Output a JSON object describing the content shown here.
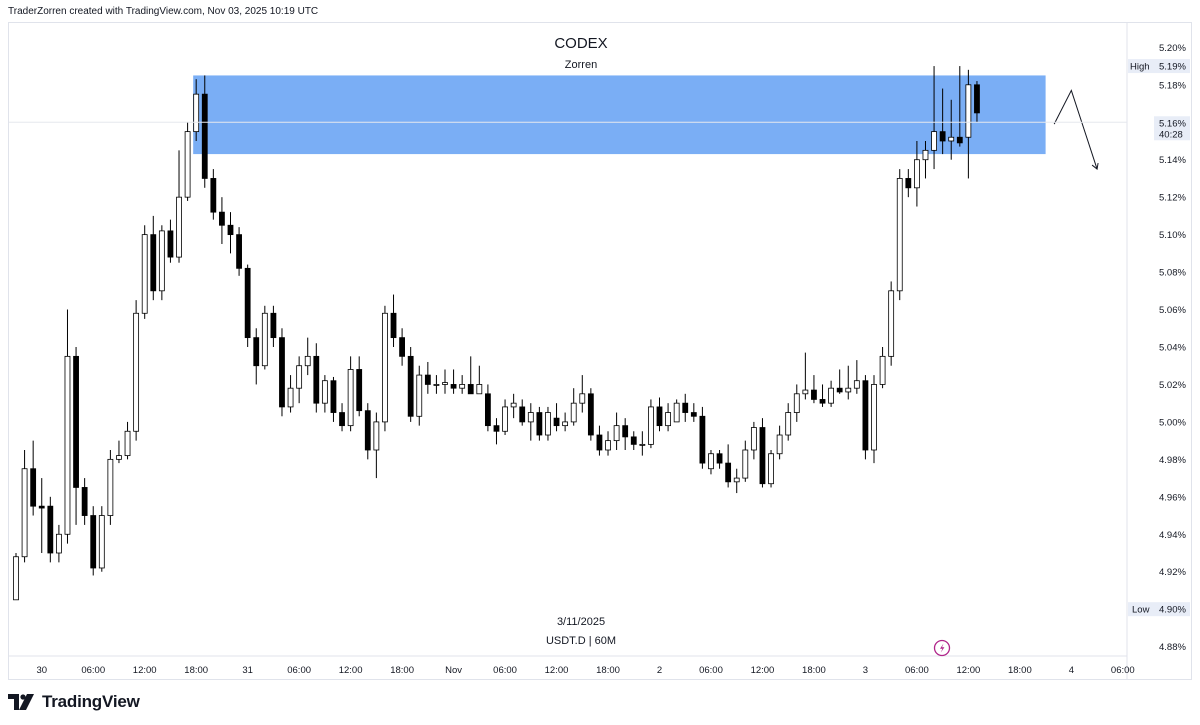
{
  "header": {
    "credit": "TraderZorren created with TradingView.com, Nov 03, 2025 10:19 UTC"
  },
  "footer": {
    "logo_text": "TradingView"
  },
  "colors": {
    "zone_fill": "#7aaef5",
    "candle_up_fill": "#ffffff",
    "candle_down_fill": "#000000",
    "candle_border": "#000000",
    "axis_text": "#131722",
    "marker_bg": "#e8edf7",
    "divider": "#e0e3eb"
  },
  "chart_data": {
    "type": "candlestick",
    "title": "CODEX",
    "subtitle": "Zorren",
    "date_label": "3/11/2025",
    "symbol_label": "USDT.D | 60M",
    "y_unit_label": "%",
    "ylim": [
      4.875,
      5.213
    ],
    "yticks": [
      "5.20%",
      "5.18%",
      "5.14%",
      "5.12%",
      "5.10%",
      "5.08%",
      "5.06%",
      "5.04%",
      "5.02%",
      "5.00%",
      "4.98%",
      "4.96%",
      "4.94%",
      "4.92%",
      "4.88%"
    ],
    "xticks": [
      {
        "label": "30",
        "bar": 3
      },
      {
        "label": "06:00",
        "bar": 9
      },
      {
        "label": "12:00",
        "bar": 15
      },
      {
        "label": "18:00",
        "bar": 21
      },
      {
        "label": "31",
        "bar": 27
      },
      {
        "label": "06:00",
        "bar": 33
      },
      {
        "label": "12:00",
        "bar": 39
      },
      {
        "label": "18:00",
        "bar": 45
      },
      {
        "label": "Nov",
        "bar": 51
      },
      {
        "label": "06:00",
        "bar": 57
      },
      {
        "label": "12:00",
        "bar": 63
      },
      {
        "label": "18:00",
        "bar": 69
      },
      {
        "label": "2",
        "bar": 75
      },
      {
        "label": "06:00",
        "bar": 81
      },
      {
        "label": "12:00",
        "bar": 87
      },
      {
        "label": "18:00",
        "bar": 93
      },
      {
        "label": "3",
        "bar": 99
      },
      {
        "label": "06:00",
        "bar": 105
      },
      {
        "label": "12:00",
        "bar": 111
      },
      {
        "label": "18:00",
        "bar": 117
      },
      {
        "label": "4",
        "bar": 123
      },
      {
        "label": "06:00",
        "bar": 129
      }
    ],
    "markers": {
      "high": {
        "label": "High",
        "value_label": "5.19%",
        "value": 5.19
      },
      "low": {
        "label": "Low",
        "value_label": "4.90%",
        "value": 4.9
      },
      "current": {
        "value_label": "5.16%",
        "countdown": "40:28",
        "value": 5.16
      }
    },
    "zone": {
      "from_bar": 21,
      "to_bar": 120,
      "low": 5.143,
      "high": 5.185
    },
    "projection": [
      {
        "bar": 121,
        "value": 5.159
      },
      {
        "bar": 123,
        "value": 5.177
      },
      {
        "bar": 126,
        "value": 5.135
      }
    ],
    "grid": false,
    "candles": [
      {
        "o": 4.905,
        "h": 4.93,
        "l": 4.905,
        "c": 4.928
      },
      {
        "o": 4.928,
        "h": 4.985,
        "l": 4.925,
        "c": 4.975
      },
      {
        "o": 4.975,
        "h": 4.99,
        "l": 4.95,
        "c": 4.955
      },
      {
        "o": 4.955,
        "h": 4.97,
        "l": 4.93,
        "c": 4.954
      },
      {
        "o": 4.955,
        "h": 4.96,
        "l": 4.925,
        "c": 4.93
      },
      {
        "o": 4.93,
        "h": 4.945,
        "l": 4.925,
        "c": 4.94
      },
      {
        "o": 4.94,
        "h": 5.06,
        "l": 4.935,
        "c": 5.035
      },
      {
        "o": 5.035,
        "h": 5.04,
        "l": 4.945,
        "c": 4.965
      },
      {
        "o": 4.965,
        "h": 4.97,
        "l": 4.945,
        "c": 4.95
      },
      {
        "o": 4.95,
        "h": 4.955,
        "l": 4.918,
        "c": 4.922
      },
      {
        "o": 4.922,
        "h": 4.955,
        "l": 4.92,
        "c": 4.95
      },
      {
        "o": 4.95,
        "h": 4.985,
        "l": 4.945,
        "c": 4.98
      },
      {
        "o": 4.98,
        "h": 4.99,
        "l": 4.978,
        "c": 4.982
      },
      {
        "o": 4.982,
        "h": 5.0,
        "l": 4.98,
        "c": 4.995
      },
      {
        "o": 4.995,
        "h": 5.065,
        "l": 4.99,
        "c": 5.058
      },
      {
        "o": 5.058,
        "h": 5.105,
        "l": 5.055,
        "c": 5.1
      },
      {
        "o": 5.1,
        "h": 5.11,
        "l": 5.065,
        "c": 5.07
      },
      {
        "o": 5.07,
        "h": 5.105,
        "l": 5.065,
        "c": 5.102
      },
      {
        "o": 5.102,
        "h": 5.108,
        "l": 5.085,
        "c": 5.088
      },
      {
        "o": 5.088,
        "h": 5.145,
        "l": 5.085,
        "c": 5.12
      },
      {
        "o": 5.12,
        "h": 5.16,
        "l": 5.118,
        "c": 5.155
      },
      {
        "o": 5.155,
        "h": 5.183,
        "l": 5.15,
        "c": 5.175
      },
      {
        "o": 5.175,
        "h": 5.185,
        "l": 5.125,
        "c": 5.13
      },
      {
        "o": 5.13,
        "h": 5.135,
        "l": 5.108,
        "c": 5.112
      },
      {
        "o": 5.112,
        "h": 5.12,
        "l": 5.095,
        "c": 5.105
      },
      {
        "o": 5.105,
        "h": 5.112,
        "l": 5.09,
        "c": 5.1
      },
      {
        "o": 5.1,
        "h": 5.104,
        "l": 5.078,
        "c": 5.082
      },
      {
        "o": 5.082,
        "h": 5.084,
        "l": 5.04,
        "c": 5.045
      },
      {
        "o": 5.045,
        "h": 5.05,
        "l": 5.02,
        "c": 5.03
      },
      {
        "o": 5.03,
        "h": 5.062,
        "l": 5.028,
        "c": 5.058
      },
      {
        "o": 5.058,
        "h": 5.062,
        "l": 5.04,
        "c": 5.045
      },
      {
        "o": 5.045,
        "h": 5.05,
        "l": 5.003,
        "c": 5.008
      },
      {
        "o": 5.008,
        "h": 5.025,
        "l": 5.005,
        "c": 5.018
      },
      {
        "o": 5.018,
        "h": 5.035,
        "l": 5.01,
        "c": 5.03
      },
      {
        "o": 5.03,
        "h": 5.045,
        "l": 5.025,
        "c": 5.035
      },
      {
        "o": 5.035,
        "h": 5.042,
        "l": 5.005,
        "c": 5.01
      },
      {
        "o": 5.01,
        "h": 5.025,
        "l": 5.005,
        "c": 5.022
      },
      {
        "o": 5.022,
        "h": 5.024,
        "l": 5.0,
        "c": 5.005
      },
      {
        "o": 5.005,
        "h": 5.01,
        "l": 4.995,
        "c": 4.998
      },
      {
        "o": 4.998,
        "h": 5.035,
        "l": 4.995,
        "c": 5.028
      },
      {
        "o": 5.028,
        "h": 5.035,
        "l": 5.003,
        "c": 5.006
      },
      {
        "o": 5.006,
        "h": 5.01,
        "l": 4.98,
        "c": 4.985
      },
      {
        "o": 4.985,
        "h": 5.005,
        "l": 4.97,
        "c": 5.0
      },
      {
        "o": 5.0,
        "h": 5.062,
        "l": 4.995,
        "c": 5.058
      },
      {
        "o": 5.058,
        "h": 5.068,
        "l": 5.04,
        "c": 5.045
      },
      {
        "o": 5.045,
        "h": 5.05,
        "l": 5.03,
        "c": 5.035
      },
      {
        "o": 5.035,
        "h": 5.04,
        "l": 5.0,
        "c": 5.003
      },
      {
        "o": 5.003,
        "h": 5.03,
        "l": 4.998,
        "c": 5.025
      },
      {
        "o": 5.025,
        "h": 5.032,
        "l": 5.015,
        "c": 5.02
      },
      {
        "o": 5.02,
        "h": 5.025,
        "l": 5.015,
        "c": 5.02
      },
      {
        "o": 5.02,
        "h": 5.028,
        "l": 5.015,
        "c": 5.021
      },
      {
        "o": 5.02,
        "h": 5.028,
        "l": 5.015,
        "c": 5.018
      },
      {
        "o": 5.018,
        "h": 5.025,
        "l": 5.015,
        "c": 5.02
      },
      {
        "o": 5.02,
        "h": 5.035,
        "l": 5.015,
        "c": 5.015
      },
      {
        "o": 5.015,
        "h": 5.03,
        "l": 5.015,
        "c": 5.02
      },
      {
        "o": 5.015,
        "h": 5.02,
        "l": 4.995,
        "c": 4.998
      },
      {
        "o": 4.998,
        "h": 5.002,
        "l": 4.988,
        "c": 4.995
      },
      {
        "o": 4.995,
        "h": 5.012,
        "l": 4.993,
        "c": 5.008
      },
      {
        "o": 5.008,
        "h": 5.015,
        "l": 5.002,
        "c": 5.01
      },
      {
        "o": 5.008,
        "h": 5.012,
        "l": 4.998,
        "c": 5.0
      },
      {
        "o": 5.0,
        "h": 5.01,
        "l": 4.99,
        "c": 5.005
      },
      {
        "o": 5.005,
        "h": 5.008,
        "l": 4.99,
        "c": 4.993
      },
      {
        "o": 4.993,
        "h": 5.008,
        "l": 4.99,
        "c": 5.005
      },
      {
        "o": 5.002,
        "h": 5.01,
        "l": 4.995,
        "c": 4.998
      },
      {
        "o": 4.998,
        "h": 5.005,
        "l": 4.995,
        "c": 5.0
      },
      {
        "o": 5.0,
        "h": 5.018,
        "l": 4.998,
        "c": 5.01
      },
      {
        "o": 5.01,
        "h": 5.025,
        "l": 5.005,
        "c": 5.015
      },
      {
        "o": 5.015,
        "h": 5.018,
        "l": 4.99,
        "c": 4.993
      },
      {
        "o": 4.993,
        "h": 4.998,
        "l": 4.982,
        "c": 4.985
      },
      {
        "o": 4.985,
        "h": 4.995,
        "l": 4.982,
        "c": 4.99
      },
      {
        "o": 4.99,
        "h": 5.005,
        "l": 4.985,
        "c": 4.998
      },
      {
        "o": 4.998,
        "h": 5.002,
        "l": 4.985,
        "c": 4.992
      },
      {
        "o": 4.992,
        "h": 4.995,
        "l": 4.985,
        "c": 4.988
      },
      {
        "o": 4.988,
        "h": 4.995,
        "l": 4.982,
        "c": 4.988
      },
      {
        "o": 4.988,
        "h": 5.012,
        "l": 4.986,
        "c": 5.008
      },
      {
        "o": 5.008,
        "h": 5.013,
        "l": 4.995,
        "c": 4.998
      },
      {
        "o": 4.998,
        "h": 5.01,
        "l": 4.995,
        "c": 5.005
      },
      {
        "o": 5.0,
        "h": 5.012,
        "l": 5.0,
        "c": 5.01
      },
      {
        "o": 5.01,
        "h": 5.015,
        "l": 5.0,
        "c": 5.005
      },
      {
        "o": 5.005,
        "h": 5.01,
        "l": 5.0,
        "c": 5.003
      },
      {
        "o": 5.003,
        "h": 5.008,
        "l": 4.975,
        "c": 4.978
      },
      {
        "o": 4.975,
        "h": 4.985,
        "l": 4.972,
        "c": 4.983
      },
      {
        "o": 4.983,
        "h": 4.985,
        "l": 4.975,
        "c": 4.978
      },
      {
        "o": 4.978,
        "h": 4.988,
        "l": 4.965,
        "c": 4.968
      },
      {
        "o": 4.968,
        "h": 4.975,
        "l": 4.962,
        "c": 4.97
      },
      {
        "o": 4.97,
        "h": 4.99,
        "l": 4.968,
        "c": 4.985
      },
      {
        "o": 4.985,
        "h": 5.0,
        "l": 4.98,
        "c": 4.997
      },
      {
        "o": 4.997,
        "h": 5.002,
        "l": 4.965,
        "c": 4.967
      },
      {
        "o": 4.967,
        "h": 4.985,
        "l": 4.965,
        "c": 4.983
      },
      {
        "o": 4.983,
        "h": 4.998,
        "l": 4.98,
        "c": 4.993
      },
      {
        "o": 4.993,
        "h": 5.01,
        "l": 4.99,
        "c": 5.005
      },
      {
        "o": 5.005,
        "h": 5.02,
        "l": 5.0,
        "c": 5.015
      },
      {
        "o": 5.015,
        "h": 5.037,
        "l": 5.012,
        "c": 5.017
      },
      {
        "o": 5.017,
        "h": 5.025,
        "l": 5.01,
        "c": 5.012
      },
      {
        "o": 5.012,
        "h": 5.02,
        "l": 5.008,
        "c": 5.01
      },
      {
        "o": 5.01,
        "h": 5.022,
        "l": 5.008,
        "c": 5.018
      },
      {
        "o": 5.018,
        "h": 5.028,
        "l": 5.015,
        "c": 5.016
      },
      {
        "o": 5.016,
        "h": 5.03,
        "l": 5.012,
        "c": 5.018
      },
      {
        "o": 5.018,
        "h": 5.033,
        "l": 5.015,
        "c": 5.022
      },
      {
        "o": 5.022,
        "h": 5.025,
        "l": 4.98,
        "c": 4.985
      },
      {
        "o": 4.985,
        "h": 5.025,
        "l": 4.978,
        "c": 5.02
      },
      {
        "o": 5.02,
        "h": 5.04,
        "l": 5.018,
        "c": 5.035
      },
      {
        "o": 5.035,
        "h": 5.075,
        "l": 5.03,
        "c": 5.07
      },
      {
        "o": 5.07,
        "h": 5.135,
        "l": 5.065,
        "c": 5.13
      },
      {
        "o": 5.13,
        "h": 5.135,
        "l": 5.12,
        "c": 5.125
      },
      {
        "o": 5.125,
        "h": 5.15,
        "l": 5.115,
        "c": 5.14
      },
      {
        "o": 5.14,
        "h": 5.15,
        "l": 5.13,
        "c": 5.145
      },
      {
        "o": 5.145,
        "h": 5.19,
        "l": 5.135,
        "c": 5.155
      },
      {
        "o": 5.155,
        "h": 5.178,
        "l": 5.143,
        "c": 5.15
      },
      {
        "o": 5.15,
        "h": 5.172,
        "l": 5.14,
        "c": 5.152
      },
      {
        "o": 5.152,
        "h": 5.19,
        "l": 5.147,
        "c": 5.149
      },
      {
        "o": 5.152,
        "h": 5.188,
        "l": 5.13,
        "c": 5.18
      },
      {
        "o": 5.18,
        "h": 5.182,
        "l": 5.16,
        "c": 5.165
      }
    ]
  }
}
